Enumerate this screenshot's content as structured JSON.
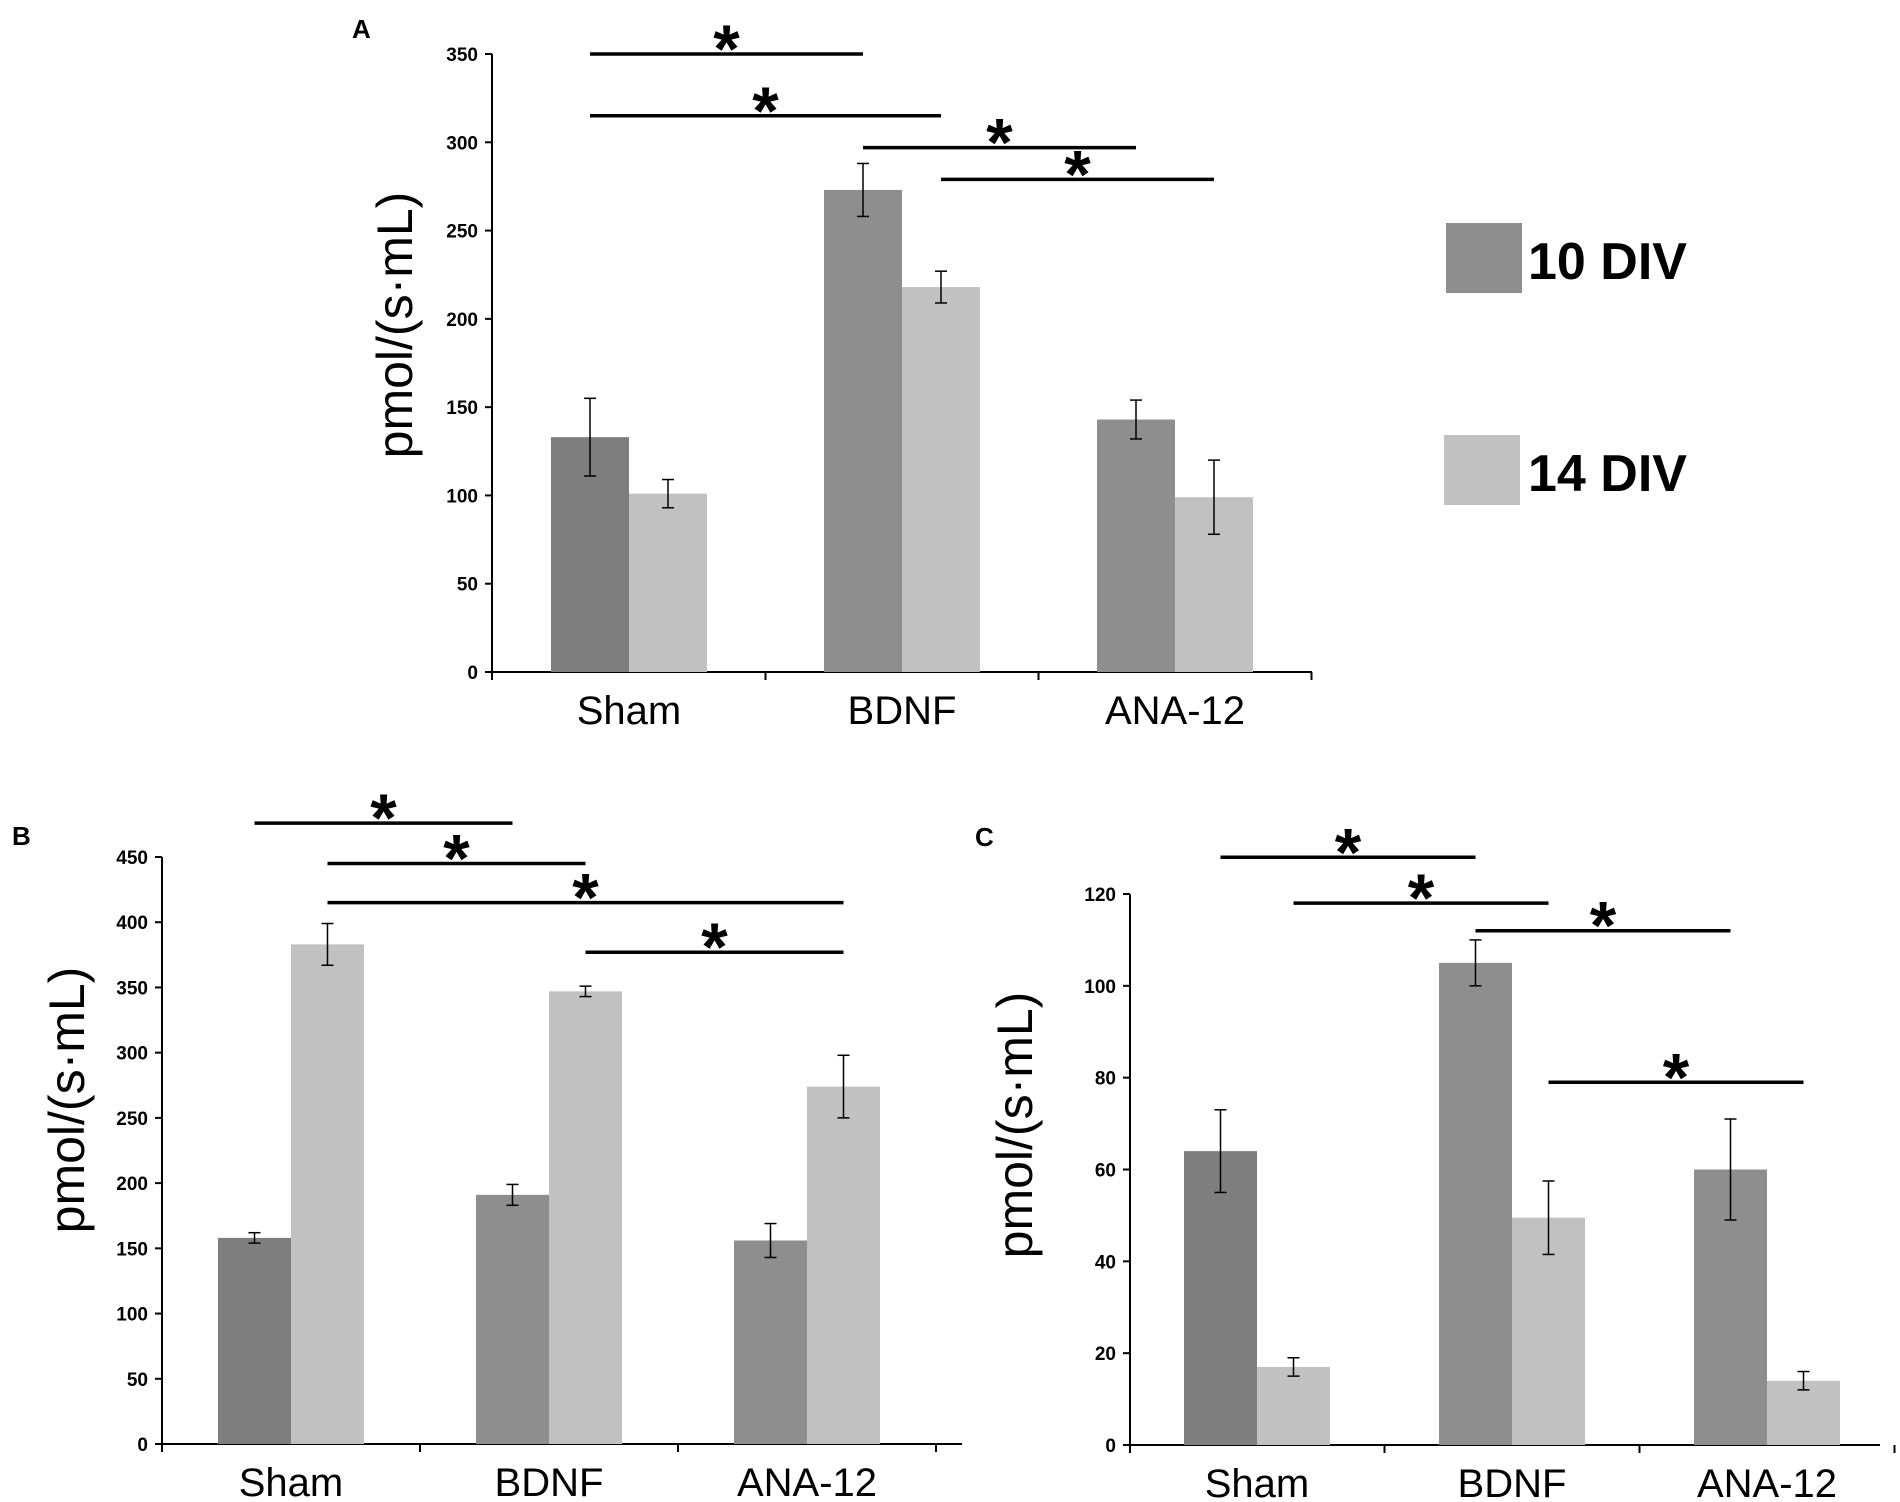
{
  "legend": {
    "series": [
      {
        "name": "10 DIV",
        "color": "#8e8e8e"
      },
      {
        "name": "14 DIV",
        "color": "#c1c1c1"
      }
    ]
  },
  "styles": {
    "sham_10div_color": "#7e7e7e",
    "axis_color": "#000000",
    "star": "*"
  },
  "chart_data": [
    {
      "panel": "A",
      "type": "bar",
      "ylabel": "pmol/(s·mL)",
      "categories": [
        "Sham",
        "BDNF",
        "ANA-12"
      ],
      "ylim": [
        0,
        350
      ],
      "yticks": [
        0,
        50,
        100,
        150,
        200,
        250,
        300,
        350
      ],
      "series": [
        {
          "name": "10 DIV",
          "values": [
            133,
            273,
            143
          ],
          "errors": [
            22,
            15,
            11
          ]
        },
        {
          "name": "14 DIV",
          "values": [
            101,
            218,
            99
          ],
          "errors": [
            8,
            9,
            21
          ]
        }
      ],
      "significance": [
        {
          "from": [
            0,
            0
          ],
          "to": [
            1,
            0
          ],
          "y": 350
        },
        {
          "from": [
            0,
            0
          ],
          "to": [
            1,
            1
          ],
          "y": 315
        },
        {
          "from": [
            1,
            0
          ],
          "to": [
            2,
            0
          ],
          "y": 297
        },
        {
          "from": [
            1,
            1
          ],
          "to": [
            2,
            1
          ],
          "y": 279
        }
      ]
    },
    {
      "panel": "B",
      "type": "bar",
      "ylabel": "pmol/(s·mL)",
      "categories": [
        "Sham",
        "BDNF",
        "ANA-12"
      ],
      "ylim": [
        0,
        450
      ],
      "yticks": [
        0,
        50,
        100,
        150,
        200,
        250,
        300,
        350,
        400,
        450
      ],
      "series": [
        {
          "name": "10 DIV",
          "values": [
            158,
            191,
            156
          ],
          "errors": [
            4,
            8,
            13
          ]
        },
        {
          "name": "14 DIV",
          "values": [
            383,
            347,
            274
          ],
          "errors": [
            16,
            4,
            24
          ]
        }
      ],
      "significance": [
        {
          "from": [
            0,
            0
          ],
          "to": [
            1,
            0
          ],
          "y": 476
        },
        {
          "from": [
            0,
            1
          ],
          "to": [
            1,
            1
          ],
          "y": 445
        },
        {
          "from": [
            0,
            1
          ],
          "to": [
            2,
            1
          ],
          "y": 415
        },
        {
          "from": [
            1,
            1
          ],
          "to": [
            2,
            1
          ],
          "y": 377
        }
      ]
    },
    {
      "panel": "C",
      "type": "bar",
      "ylabel": "pmol/(s·mL)",
      "categories": [
        "Sham",
        "BDNF",
        "ANA-12"
      ],
      "ylim": [
        0,
        120
      ],
      "yticks": [
        0,
        20,
        40,
        60,
        80,
        100,
        120
      ],
      "series": [
        {
          "name": "10 DIV",
          "values": [
            64,
            105,
            60
          ],
          "errors": [
            9,
            5,
            11
          ]
        },
        {
          "name": "14 DIV",
          "values": [
            17,
            49.5,
            14
          ],
          "errors": [
            2,
            8,
            2
          ]
        }
      ],
      "significance": [
        {
          "from": [
            0,
            0
          ],
          "to": [
            1,
            0
          ],
          "y": 128
        },
        {
          "from": [
            0,
            1
          ],
          "to": [
            1,
            1
          ],
          "y": 118
        },
        {
          "from": [
            1,
            0
          ],
          "to": [
            2,
            0
          ],
          "y": 112
        },
        {
          "from": [
            1,
            1
          ],
          "to": [
            2,
            1
          ],
          "y": 79
        }
      ]
    }
  ]
}
